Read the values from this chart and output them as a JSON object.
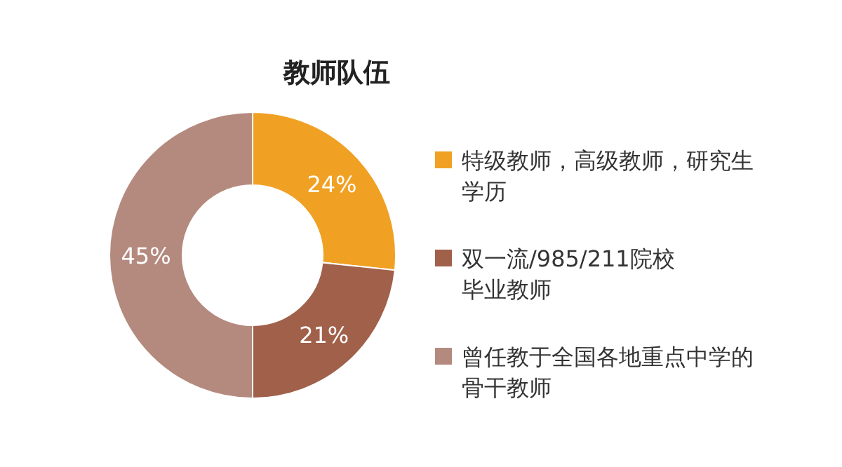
{
  "chart_data": {
    "type": "donut",
    "title": "教师队伍",
    "categories": [
      "特级教师，高级教师，研究生学历",
      "双一流/985/211院校毕业教师",
      "曾任教于全国各地重点中学的骨干教师"
    ],
    "values": [
      24,
      21,
      45
    ],
    "colors": [
      "#f0a124",
      "#a0604a",
      "#b48a7e"
    ],
    "value_labels": [
      "24%",
      "21%",
      "45%"
    ],
    "legend": "right"
  }
}
